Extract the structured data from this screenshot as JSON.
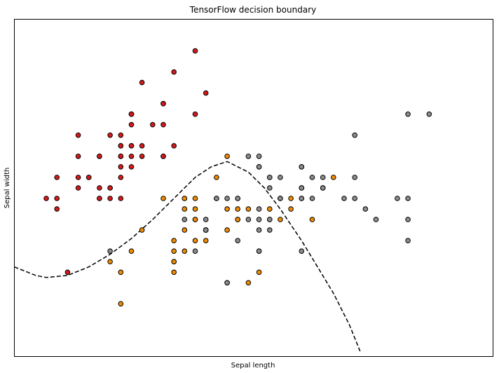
{
  "chart_data": {
    "type": "scatter",
    "title": "TensorFlow decision boundary",
    "xlabel": "Sepal length",
    "ylabel": "Sepal width",
    "xlim": [
      4.0,
      8.5
    ],
    "ylim": [
      1.5,
      4.7
    ],
    "xticks": [],
    "yticks": [],
    "grid": false,
    "colors": {
      "setosa": "#d7191c",
      "versicolor": "#f08c00",
      "virginica": "#8c8c8c",
      "edge": "#000000",
      "boundary": "#000000"
    },
    "series": [
      {
        "key": "setosa",
        "color": "#d7191c",
        "points": [
          [
            5.1,
            3.5
          ],
          [
            4.9,
            3.0
          ],
          [
            4.7,
            3.2
          ],
          [
            4.6,
            3.1
          ],
          [
            5.0,
            3.6
          ],
          [
            5.4,
            3.9
          ],
          [
            4.6,
            3.4
          ],
          [
            5.0,
            3.4
          ],
          [
            4.4,
            2.9
          ],
          [
            4.9,
            3.1
          ],
          [
            5.4,
            3.7
          ],
          [
            4.8,
            3.4
          ],
          [
            4.8,
            3.0
          ],
          [
            4.3,
            3.0
          ],
          [
            5.8,
            4.0
          ],
          [
            5.7,
            4.4
          ],
          [
            5.4,
            3.9
          ],
          [
            5.1,
            3.5
          ],
          [
            5.7,
            3.8
          ],
          [
            5.1,
            3.8
          ],
          [
            5.4,
            3.4
          ],
          [
            5.1,
            3.7
          ],
          [
            4.6,
            3.6
          ],
          [
            5.1,
            3.3
          ],
          [
            4.8,
            3.4
          ],
          [
            5.0,
            3.0
          ],
          [
            5.0,
            3.4
          ],
          [
            5.2,
            3.5
          ],
          [
            5.2,
            3.4
          ],
          [
            4.7,
            3.2
          ],
          [
            4.8,
            3.1
          ],
          [
            5.4,
            3.4
          ],
          [
            5.2,
            4.1
          ],
          [
            5.5,
            4.2
          ],
          [
            4.9,
            3.1
          ],
          [
            5.0,
            3.2
          ],
          [
            5.5,
            3.5
          ],
          [
            4.9,
            3.6
          ],
          [
            4.4,
            3.0
          ],
          [
            5.1,
            3.4
          ],
          [
            5.0,
            3.5
          ],
          [
            4.5,
            2.3
          ],
          [
            4.4,
            3.2
          ],
          [
            5.0,
            3.5
          ],
          [
            5.1,
            3.8
          ],
          [
            4.8,
            3.0
          ],
          [
            5.1,
            3.8
          ],
          [
            4.6,
            3.2
          ],
          [
            5.3,
            3.7
          ],
          [
            5.0,
            3.3
          ]
        ]
      },
      {
        "key": "versicolor",
        "color": "#f08c00",
        "points": [
          [
            7.0,
            3.2
          ],
          [
            6.4,
            3.2
          ],
          [
            6.9,
            3.1
          ],
          [
            5.5,
            2.3
          ],
          [
            6.5,
            2.8
          ],
          [
            5.7,
            2.8
          ],
          [
            6.3,
            3.3
          ],
          [
            4.9,
            2.4
          ],
          [
            6.6,
            2.9
          ],
          [
            5.2,
            2.7
          ],
          [
            5.0,
            2.0
          ],
          [
            5.9,
            3.0
          ],
          [
            6.0,
            2.2
          ],
          [
            6.1,
            2.9
          ],
          [
            5.6,
            2.9
          ],
          [
            6.7,
            3.1
          ],
          [
            5.6,
            3.0
          ],
          [
            5.8,
            2.7
          ],
          [
            6.2,
            2.2
          ],
          [
            5.6,
            2.5
          ],
          [
            5.9,
            3.2
          ],
          [
            6.1,
            2.8
          ],
          [
            6.3,
            2.5
          ],
          [
            6.1,
            2.8
          ],
          [
            6.4,
            2.9
          ],
          [
            6.6,
            3.0
          ],
          [
            6.8,
            2.8
          ],
          [
            6.7,
            3.0
          ],
          [
            6.0,
            2.9
          ],
          [
            5.7,
            2.6
          ],
          [
            5.5,
            2.4
          ],
          [
            5.5,
            2.4
          ],
          [
            5.8,
            2.7
          ],
          [
            6.0,
            2.7
          ],
          [
            5.4,
            3.0
          ],
          [
            6.0,
            3.4
          ],
          [
            6.7,
            3.1
          ],
          [
            6.3,
            2.3
          ],
          [
            5.6,
            3.0
          ],
          [
            5.5,
            2.5
          ],
          [
            5.5,
            2.6
          ],
          [
            6.1,
            3.0
          ],
          [
            5.8,
            2.6
          ],
          [
            5.0,
            2.3
          ],
          [
            5.6,
            2.7
          ],
          [
            5.7,
            3.0
          ],
          [
            5.7,
            2.9
          ],
          [
            6.2,
            2.9
          ],
          [
            5.1,
            2.5
          ],
          [
            5.7,
            2.8
          ]
        ]
      },
      {
        "key": "virginica",
        "color": "#8c8c8c",
        "points": [
          [
            6.3,
            3.3
          ],
          [
            5.8,
            2.7
          ],
          [
            7.1,
            3.0
          ],
          [
            6.3,
            2.9
          ],
          [
            6.5,
            3.0
          ],
          [
            7.6,
            3.0
          ],
          [
            4.9,
            2.5
          ],
          [
            7.3,
            2.9
          ],
          [
            6.7,
            2.5
          ],
          [
            7.2,
            3.6
          ],
          [
            6.5,
            3.2
          ],
          [
            6.4,
            2.7
          ],
          [
            6.8,
            3.0
          ],
          [
            5.7,
            2.5
          ],
          [
            5.8,
            2.8
          ],
          [
            6.4,
            3.2
          ],
          [
            6.5,
            3.0
          ],
          [
            7.7,
            3.8
          ],
          [
            7.7,
            2.6
          ],
          [
            6.0,
            2.2
          ],
          [
            6.9,
            3.2
          ],
          [
            5.6,
            2.8
          ],
          [
            7.7,
            2.8
          ],
          [
            6.3,
            2.7
          ],
          [
            6.7,
            3.3
          ],
          [
            7.2,
            3.2
          ],
          [
            6.2,
            2.8
          ],
          [
            6.1,
            3.0
          ],
          [
            6.4,
            2.8
          ],
          [
            7.2,
            3.0
          ],
          [
            7.4,
            2.8
          ],
          [
            7.9,
            3.8
          ],
          [
            6.4,
            2.8
          ],
          [
            6.3,
            2.8
          ],
          [
            6.1,
            2.6
          ],
          [
            7.7,
            3.0
          ],
          [
            6.3,
            3.4
          ],
          [
            6.4,
            3.1
          ],
          [
            6.0,
            3.0
          ],
          [
            6.9,
            3.1
          ],
          [
            6.7,
            3.1
          ],
          [
            6.9,
            3.1
          ],
          [
            5.8,
            2.7
          ],
          [
            6.8,
            3.2
          ],
          [
            6.7,
            3.3
          ],
          [
            6.7,
            3.0
          ],
          [
            6.3,
            2.5
          ],
          [
            6.5,
            3.0
          ],
          [
            6.2,
            3.4
          ],
          [
            5.9,
            3.0
          ]
        ]
      }
    ],
    "decision_boundary": {
      "style": "dashed",
      "points": [
        [
          4.0,
          2.35
        ],
        [
          4.2,
          2.27
        ],
        [
          4.3,
          2.25
        ],
        [
          4.5,
          2.27
        ],
        [
          4.7,
          2.35
        ],
        [
          4.9,
          2.47
        ],
        [
          5.1,
          2.62
        ],
        [
          5.3,
          2.8
        ],
        [
          5.5,
          3.0
        ],
        [
          5.7,
          3.2
        ],
        [
          5.85,
          3.3
        ],
        [
          6.0,
          3.35
        ],
        [
          6.1,
          3.3
        ],
        [
          6.2,
          3.25
        ],
        [
          6.35,
          3.1
        ],
        [
          6.5,
          2.9
        ],
        [
          6.7,
          2.6
        ],
        [
          6.85,
          2.35
        ],
        [
          7.0,
          2.1
        ],
        [
          7.15,
          1.8
        ],
        [
          7.25,
          1.55
        ]
      ]
    }
  }
}
